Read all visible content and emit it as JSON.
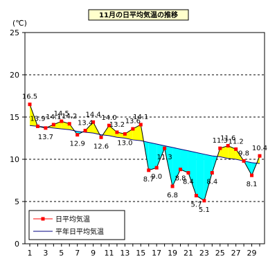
{
  "chart_data": {
    "type": "line",
    "title": "11月の日平均気温の推移",
    "ylabel": "(℃)",
    "ylim": [
      0,
      25
    ],
    "yticks": [
      0,
      5,
      10,
      15,
      20,
      25
    ],
    "xlim": [
      1,
      30
    ],
    "xticks": [
      1,
      3,
      5,
      7,
      9,
      11,
      13,
      15,
      17,
      19,
      21,
      23,
      25,
      27,
      29
    ],
    "grid": "horizontal-dashed",
    "legend_position": "bottom-left",
    "colors": {
      "daily_line": "#ff0000",
      "daily_marker": "#ff0000",
      "normal_line": "#000080",
      "above_fill": "#ffff00",
      "below_fill": "#00ffff"
    },
    "x": [
      1,
      2,
      3,
      4,
      5,
      6,
      7,
      8,
      9,
      10,
      11,
      12,
      13,
      14,
      15,
      16,
      17,
      18,
      19,
      20,
      21,
      22,
      23,
      24,
      25,
      26,
      27,
      28,
      29,
      30
    ],
    "series": [
      {
        "name": "日平均気温",
        "values": [
          16.5,
          13.9,
          13.7,
          14.1,
          14.5,
          14.2,
          12.9,
          13.4,
          14.4,
          12.6,
          14.0,
          13.2,
          13.0,
          13.6,
          14.1,
          8.7,
          9.0,
          11.3,
          6.8,
          8.8,
          8.4,
          5.7,
          5.1,
          8.4,
          11.3,
          11.6,
          11.2,
          9.8,
          8.1,
          10.4
        ]
      },
      {
        "name": "平年日平均気温",
        "values": [
          14.0,
          13.9,
          13.8,
          13.7,
          13.6,
          13.5,
          13.3,
          13.2,
          13.1,
          12.9,
          12.8,
          12.6,
          12.5,
          12.3,
          12.2,
          12.0,
          11.8,
          11.6,
          11.4,
          11.2,
          11.0,
          10.8,
          10.6,
          10.4,
          10.3,
          10.1,
          10.0,
          9.8,
          9.6,
          9.5
        ]
      }
    ],
    "data_labels": [
      "16.5",
      "13.9",
      "13.7",
      "14.1",
      "14.5",
      "14.2",
      "12.9",
      "13.4",
      "14.4",
      "12.6",
      "14.0",
      "13.2",
      "13.0",
      "13.6",
      "14.1",
      "8.7",
      "9.0",
      "11.3",
      "6.8",
      "8.8",
      "8.4",
      "5.7",
      "5.1",
      "8.4",
      "11.3",
      "11.6",
      "11.2",
      "9.8",
      "8.1",
      "10.4"
    ]
  }
}
